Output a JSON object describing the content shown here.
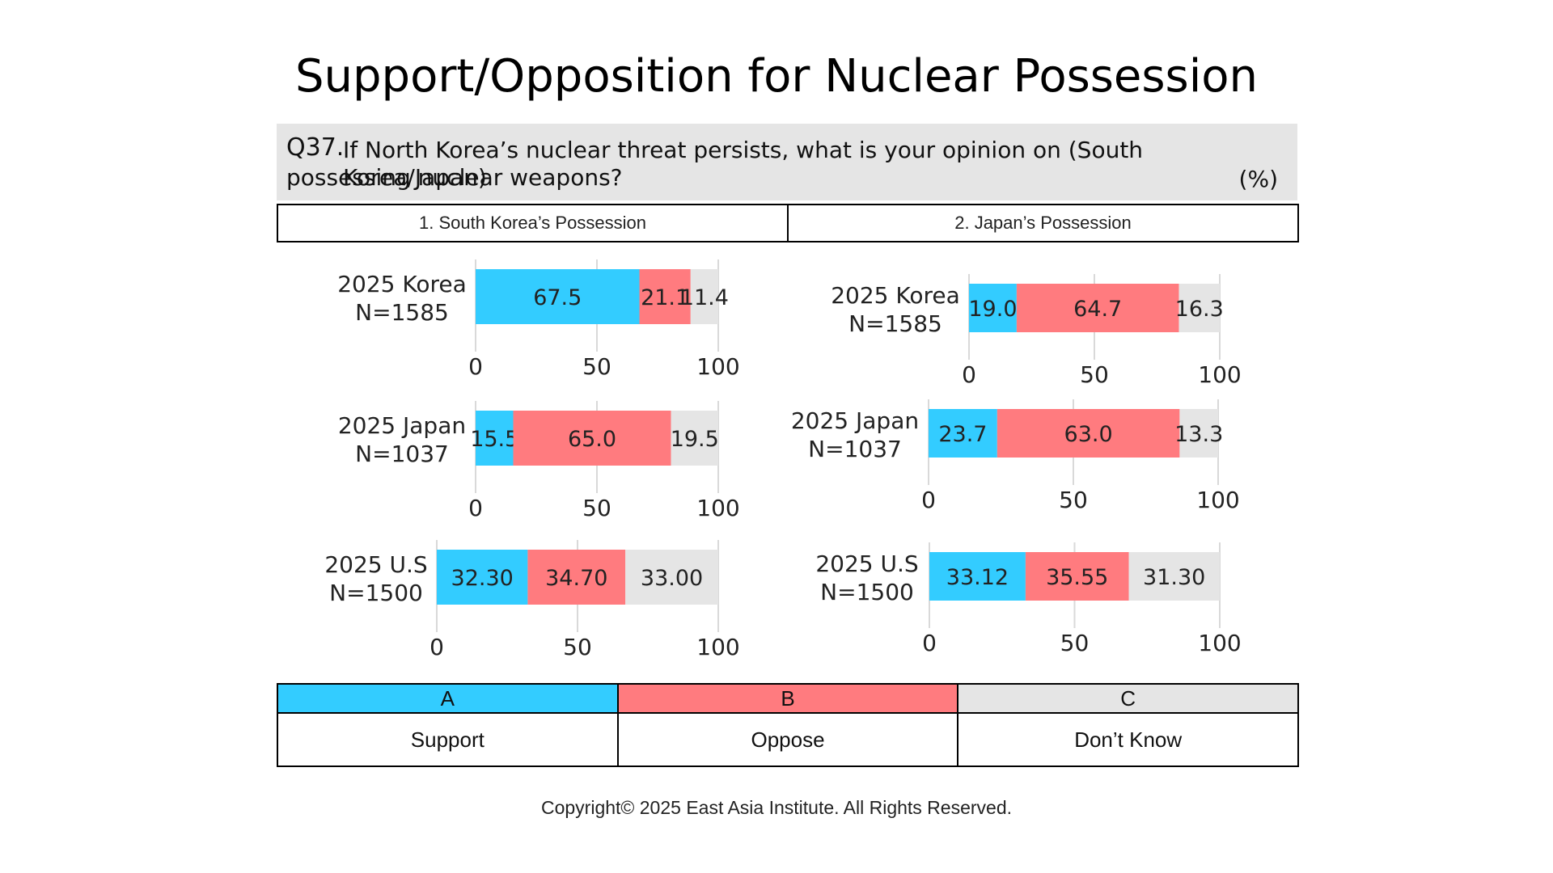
{
  "title": "Support/Opposition for Nuclear Possession",
  "question": {
    "id": "Q37.",
    "text_line1": "If North Korea’s nuclear threat persists, what is your opinion on (South Korea/Japan)",
    "text_line2": "possessing nuclear weapons?",
    "unit": "(%)"
  },
  "columns": [
    "1. South Korea’s Possession",
    "2. Japan’s Possession"
  ],
  "legend": [
    {
      "code": "A",
      "label": "Support",
      "color": "#33ccff"
    },
    {
      "code": "B",
      "label": "Oppose",
      "color": "#ff7b7f"
    },
    {
      "code": "C",
      "label": "Don’t Know",
      "color": "#e5e5e5"
    }
  ],
  "copyright": "Copyright© 2025 East Asia Institute. All Rights Reserved.",
  "chart_data": [
    {
      "type": "bar",
      "panel": "1. South Korea’s Possession",
      "orientation": "horizontal-stacked",
      "categories": [
        [
          "2025 Korea",
          "N=1585"
        ],
        [
          "2025 Japan",
          "N=1037"
        ],
        [
          "2025 U.S",
          "N=1500"
        ]
      ],
      "series": [
        {
          "name": "Support",
          "values": [
            "67.5",
            "15.5",
            "32.30"
          ]
        },
        {
          "name": "Oppose",
          "values": [
            "21.1",
            "65.0",
            "34.70"
          ]
        },
        {
          "name": "Don’t Know",
          "values": [
            "11.4",
            "19.5",
            "33.00"
          ]
        }
      ],
      "xlim": [
        0,
        100
      ],
      "xticks": [
        "0",
        "50",
        "100"
      ]
    },
    {
      "type": "bar",
      "panel": "2. Japan’s Possession",
      "orientation": "horizontal-stacked",
      "categories": [
        [
          "2025 Korea",
          "N=1585"
        ],
        [
          "2025 Japan",
          "N=1037"
        ],
        [
          "2025 U.S",
          "N=1500"
        ]
      ],
      "series": [
        {
          "name": "Support",
          "values": [
            "19.0",
            "23.7",
            "33.12"
          ]
        },
        {
          "name": "Oppose",
          "values": [
            "64.7",
            "63.0",
            "35.55"
          ]
        },
        {
          "name": "Don’t Know",
          "values": [
            "16.3",
            "13.3",
            "31.30"
          ]
        }
      ],
      "xlim": [
        0,
        100
      ],
      "xticks": [
        "0",
        "50",
        "100"
      ]
    }
  ]
}
